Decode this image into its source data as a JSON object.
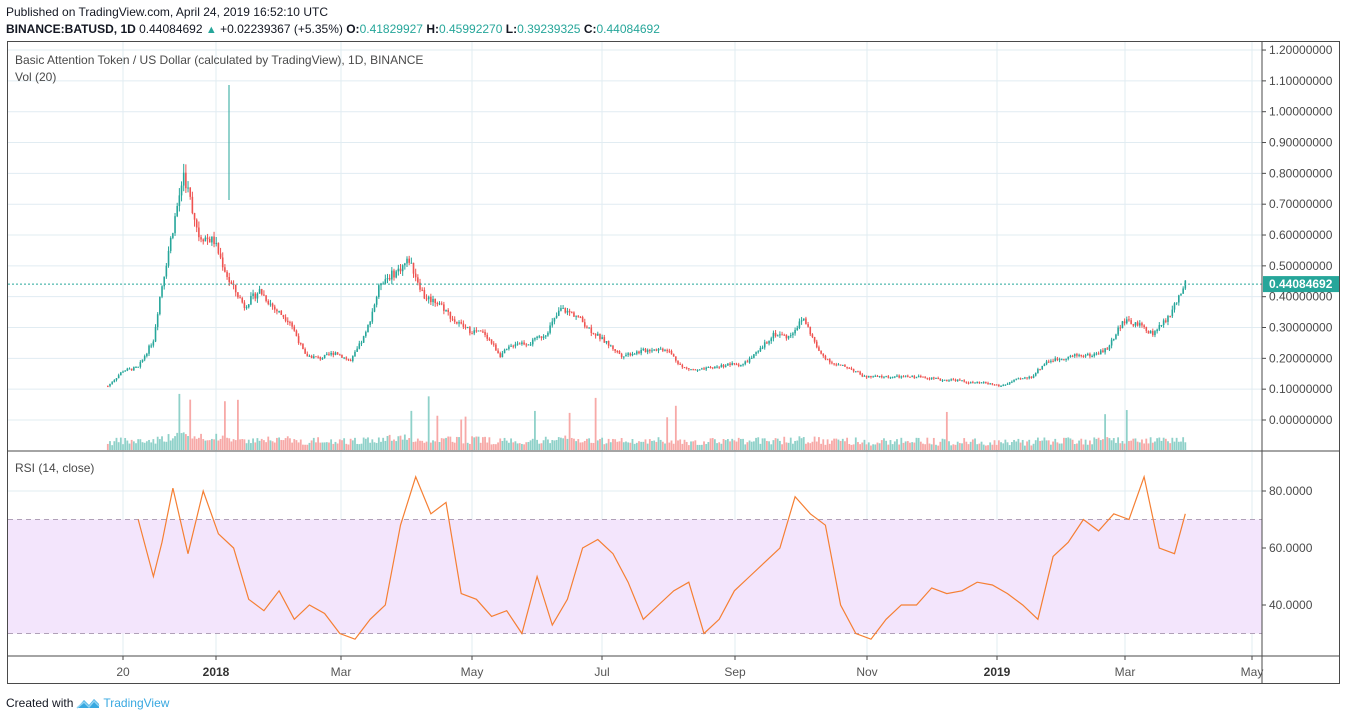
{
  "header": {
    "published": "Published on TradingView.com, April 24, 2019 16:52:10 UTC",
    "symbol": "BINANCE:BATUSD, 1D",
    "last": "0.44084692",
    "change_arrow": "▲",
    "change": "+0.02239367 (+5.35%)",
    "o_label": "O:",
    "o": "0.41829927",
    "h_label": "H:",
    "h": "0.45992270",
    "l_label": "L:",
    "l": "0.39239325",
    "c_label": "C:",
    "c": "0.44084692"
  },
  "pane_main": {
    "title": "Basic Attention Token / US Dollar (calculated by TradingView), 1D, BINANCE",
    "vol_label": "Vol (20)",
    "price_ticks": [
      "1.20000000",
      "1.10000000",
      "1.00000000",
      "0.90000000",
      "0.80000000",
      "0.70000000",
      "0.60000000",
      "0.50000000",
      "0.40000000",
      "0.30000000",
      "0.20000000",
      "0.10000000",
      "0.00000000"
    ],
    "last_price_label": "0.44084692"
  },
  "pane_rsi": {
    "title": "RSI (14, close)",
    "ticks": [
      "80.0000",
      "60.0000",
      "40.0000"
    ]
  },
  "time_axis": {
    "labels": [
      "20",
      "2018",
      "Mar",
      "May",
      "Jul",
      "Sep",
      "Nov",
      "2019",
      "Mar",
      "May"
    ]
  },
  "footer": {
    "created_with": "Created with",
    "brand": "TradingView"
  },
  "colors": {
    "up": "#26a69a",
    "down": "#ef5350",
    "vol_up": "#8fd1c9",
    "vol_down": "#f7a9a7",
    "rsi_line": "#f57f33",
    "rsi_band": "#f3e5fc",
    "grid": "#e1ecf2",
    "last_price_bg": "#26a69a"
  },
  "chart_data": [
    {
      "type": "candlestick",
      "title": "Basic Attention Token / US Dollar (calculated by TradingView), 1D, BINANCE",
      "xlabel": "",
      "ylabel": "USD",
      "ylim": [
        0.0,
        1.2
      ],
      "grid": true,
      "x": [
        "2017-12-13",
        "2017-12-20",
        "2017-12-27",
        "2018-01-03",
        "2018-01-06",
        "2018-01-10",
        "2018-01-17",
        "2018-01-24",
        "2018-01-31",
        "2018-02-07",
        "2018-02-14",
        "2018-02-21",
        "2018-02-28",
        "2018-03-07",
        "2018-03-14",
        "2018-03-21",
        "2018-03-28",
        "2018-04-04",
        "2018-04-11",
        "2018-04-18",
        "2018-04-25",
        "2018-05-01",
        "2018-05-08",
        "2018-05-15",
        "2018-05-22",
        "2018-05-29",
        "2018-06-05",
        "2018-06-12",
        "2018-06-19",
        "2018-06-26",
        "2018-07-03",
        "2018-07-10",
        "2018-07-17",
        "2018-07-24",
        "2018-07-31",
        "2018-08-07",
        "2018-08-14",
        "2018-08-21",
        "2018-08-28",
        "2018-09-04",
        "2018-09-11",
        "2018-09-18",
        "2018-09-25",
        "2018-10-02",
        "2018-10-09",
        "2018-10-16",
        "2018-10-23",
        "2018-10-30",
        "2018-11-06",
        "2018-11-13",
        "2018-11-20",
        "2018-11-27",
        "2018-12-04",
        "2018-12-11",
        "2018-12-18",
        "2018-12-25",
        "2019-01-01",
        "2019-01-08",
        "2019-01-15",
        "2019-01-22",
        "2019-01-29",
        "2019-02-05",
        "2019-02-12",
        "2019-02-19",
        "2019-02-26",
        "2019-03-05",
        "2019-03-12",
        "2019-03-19",
        "2019-03-26",
        "2019-04-02",
        "2019-04-09",
        "2019-04-16",
        "2019-04-24"
      ],
      "close": [
        0.11,
        0.16,
        0.17,
        0.26,
        0.4,
        0.55,
        0.8,
        0.6,
        0.58,
        0.45,
        0.37,
        0.42,
        0.36,
        0.32,
        0.21,
        0.2,
        0.22,
        0.19,
        0.28,
        0.45,
        0.48,
        0.52,
        0.4,
        0.38,
        0.32,
        0.29,
        0.28,
        0.21,
        0.25,
        0.25,
        0.28,
        0.36,
        0.34,
        0.29,
        0.25,
        0.21,
        0.22,
        0.23,
        0.23,
        0.17,
        0.16,
        0.17,
        0.18,
        0.18,
        0.22,
        0.28,
        0.27,
        0.33,
        0.22,
        0.18,
        0.17,
        0.14,
        0.14,
        0.14,
        0.14,
        0.14,
        0.13,
        0.13,
        0.12,
        0.12,
        0.11,
        0.13,
        0.14,
        0.19,
        0.2,
        0.21,
        0.21,
        0.23,
        0.32,
        0.31,
        0.28,
        0.33,
        0.44
      ],
      "notes": "Approximate weekly closes read from the daily candlestick chart; all-time high wick ~1.09 around 2018-01-09"
    },
    {
      "type": "bar",
      "title": "Vol (20)",
      "notes": "Volume histogram at bottom of price pane; spikes around 2018-04-15, 2018-10-25, 2018-11-06, 2019-02-20, 2019-04-02, 2019-04-20"
    },
    {
      "type": "line",
      "title": "RSI (14, close)",
      "ylim": [
        22,
        92
      ],
      "bands": {
        "upper": 70,
        "lower": 30
      },
      "x": [
        "2017-12-27",
        "2018-01-03",
        "2018-01-07",
        "2018-01-12",
        "2018-01-19",
        "2018-01-26",
        "2018-02-02",
        "2018-02-09",
        "2018-02-16",
        "2018-02-23",
        "2018-03-02",
        "2018-03-09",
        "2018-03-16",
        "2018-03-23",
        "2018-03-30",
        "2018-04-06",
        "2018-04-13",
        "2018-04-20",
        "2018-04-27",
        "2018-05-04",
        "2018-05-11",
        "2018-05-18",
        "2018-05-25",
        "2018-06-01",
        "2018-06-08",
        "2018-06-15",
        "2018-06-22",
        "2018-06-29",
        "2018-07-06",
        "2018-07-13",
        "2018-07-20",
        "2018-07-27",
        "2018-08-03",
        "2018-08-10",
        "2018-08-17",
        "2018-08-24",
        "2018-08-31",
        "2018-09-07",
        "2018-09-14",
        "2018-09-21",
        "2018-09-28",
        "2018-10-05",
        "2018-10-12",
        "2018-10-19",
        "2018-10-26",
        "2018-11-02",
        "2018-11-09",
        "2018-11-16",
        "2018-11-23",
        "2018-11-30",
        "2018-12-07",
        "2018-12-14",
        "2018-12-21",
        "2018-12-28",
        "2019-01-04",
        "2019-01-11",
        "2019-01-18",
        "2019-01-25",
        "2019-02-01",
        "2019-02-08",
        "2019-02-15",
        "2019-02-22",
        "2019-03-01",
        "2019-03-08",
        "2019-03-15",
        "2019-03-22",
        "2019-03-29",
        "2019-04-05",
        "2019-04-12",
        "2019-04-19",
        "2019-04-24"
      ],
      "values": [
        70,
        50,
        62,
        81,
        58,
        80,
        65,
        60,
        42,
        38,
        45,
        35,
        40,
        37,
        30,
        28,
        35,
        40,
        68,
        85,
        72,
        76,
        44,
        42,
        36,
        38,
        30,
        50,
        33,
        42,
        60,
        63,
        58,
        48,
        35,
        40,
        45,
        48,
        30,
        35,
        45,
        50,
        55,
        60,
        78,
        72,
        68,
        40,
        30,
        28,
        35,
        40,
        40,
        46,
        44,
        45,
        48,
        47,
        44,
        40,
        35,
        57,
        62,
        70,
        66,
        72,
        70,
        85,
        60,
        58,
        72
      ],
      "notes": "Approximate RSI values read from the lower pane"
    }
  ]
}
